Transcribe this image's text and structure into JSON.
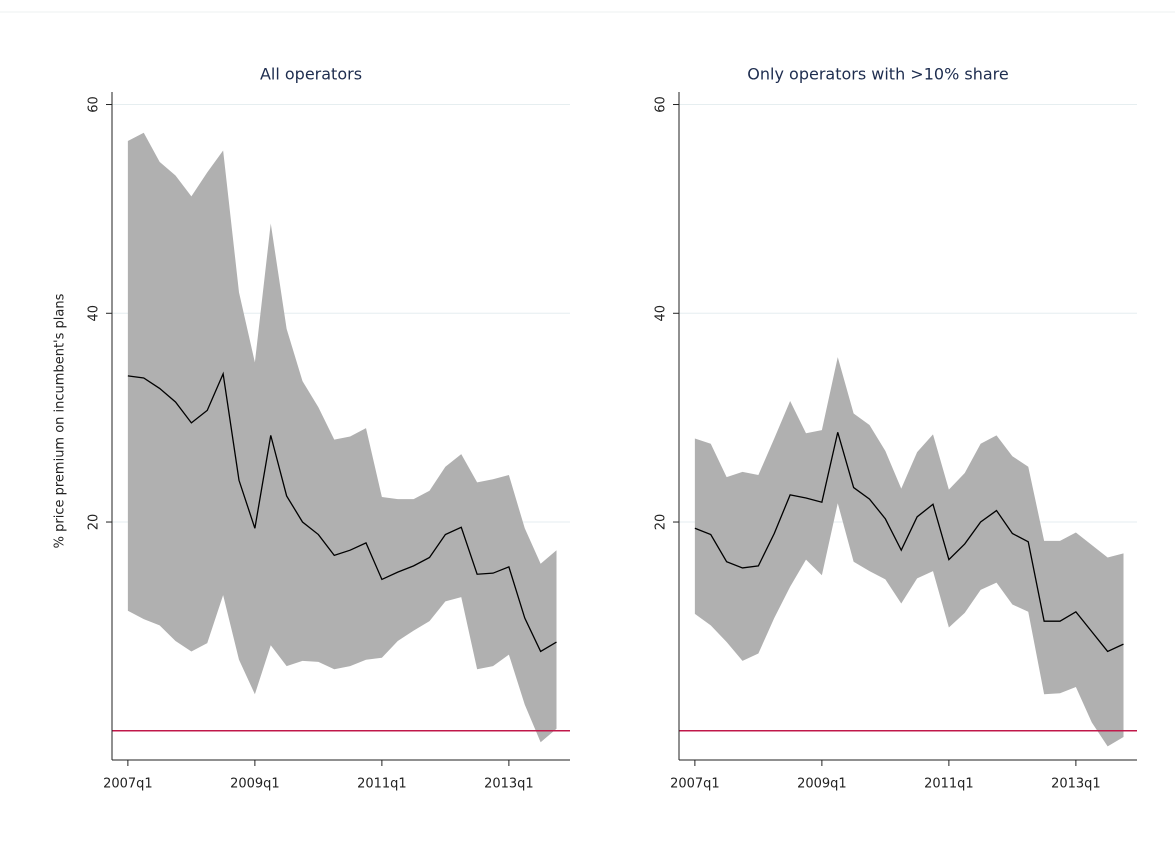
{
  "chart_data": [
    {
      "type": "line",
      "title": "All operators",
      "ylabel": "% price premium on incumbent's plans",
      "x": [
        188,
        189,
        190,
        191,
        192,
        193,
        194,
        195,
        196,
        197,
        198,
        199,
        200,
        201,
        202,
        203,
        204,
        205,
        206,
        207,
        208,
        209,
        210,
        211,
        212,
        213,
        214,
        215
      ],
      "series": [
        {
          "color": "#000000",
          "values": [
            34.0,
            33.8,
            32.8,
            31.5,
            29.5,
            30.7,
            34.2,
            24.0,
            19.4,
            28.3,
            22.5,
            20.0,
            18.8,
            16.8,
            17.3,
            18.0,
            14.5,
            15.2,
            15.8,
            16.6,
            18.8,
            19.5,
            15.0,
            15.1,
            15.7,
            10.8,
            7.6,
            8.5
          ]
        }
      ],
      "band": {
        "color": "#b0b0b0",
        "upper": [
          56.5,
          57.3,
          54.5,
          53.2,
          51.2,
          53.5,
          55.6,
          42.0,
          35.3,
          48.6,
          38.5,
          33.5,
          31.0,
          27.9,
          28.2,
          29.0,
          22.4,
          22.2,
          22.2,
          23.0,
          25.3,
          26.5,
          23.8,
          24.1,
          24.5,
          19.4,
          16.0,
          17.3
        ],
        "lower": [
          11.5,
          10.7,
          10.1,
          8.6,
          7.6,
          8.4,
          13.0,
          6.8,
          3.5,
          8.2,
          6.2,
          6.7,
          6.6,
          5.9,
          6.2,
          6.8,
          7.0,
          8.6,
          9.6,
          10.5,
          12.4,
          12.8,
          5.9,
          6.2,
          7.3,
          2.5,
          -1.1,
          0.2
        ]
      },
      "reference_line": {
        "value": 0,
        "color": "#c0184a"
      },
      "xlim": [
        187,
        215.85
      ],
      "ylim": [
        -2.8,
        61.2
      ],
      "xticks": [
        {
          "value": 188,
          "label": "2007q1"
        },
        {
          "value": 196,
          "label": "2009q1"
        },
        {
          "value": 204,
          "label": "2011q1"
        },
        {
          "value": 212,
          "label": "2013q1"
        }
      ],
      "yticks": [
        20,
        40,
        60
      ],
      "grid": true
    },
    {
      "type": "line",
      "title": "Only operators with >10% share",
      "x": [
        188,
        189,
        190,
        191,
        192,
        193,
        194,
        195,
        196,
        197,
        198,
        199,
        200,
        201,
        202,
        203,
        204,
        205,
        206,
        207,
        208,
        209,
        210,
        211,
        212,
        213,
        214,
        215
      ],
      "series": [
        {
          "color": "#000000",
          "values": [
            19.4,
            18.8,
            16.2,
            15.6,
            15.8,
            18.9,
            22.6,
            22.3,
            21.9,
            28.6,
            23.3,
            22.2,
            20.3,
            17.3,
            20.5,
            21.7,
            16.4,
            17.9,
            20.0,
            21.1,
            18.9,
            18.1,
            10.5,
            10.5,
            11.4,
            9.5,
            7.6,
            8.3
          ]
        }
      ],
      "band": {
        "color": "#b0b0b0",
        "upper": [
          28.0,
          27.5,
          24.3,
          24.8,
          24.5,
          28.0,
          31.6,
          28.5,
          28.8,
          35.8,
          30.4,
          29.3,
          26.8,
          23.2,
          26.7,
          28.4,
          23.1,
          24.7,
          27.5,
          28.3,
          26.3,
          25.3,
          18.2,
          18.2,
          19.0,
          17.8,
          16.6,
          17.0
        ],
        "lower": [
          11.2,
          10.1,
          8.5,
          6.7,
          7.4,
          10.8,
          13.8,
          16.4,
          14.9,
          21.8,
          16.2,
          15.3,
          14.5,
          12.2,
          14.6,
          15.3,
          9.9,
          11.3,
          13.5,
          14.2,
          12.1,
          11.4,
          3.5,
          3.6,
          4.2,
          0.8,
          -1.5,
          -0.6
        ]
      },
      "reference_line": {
        "value": 0,
        "color": "#c0184a"
      },
      "xlim": [
        187,
        215.85
      ],
      "ylim": [
        -2.8,
        61.2
      ],
      "xticks": [
        {
          "value": 188,
          "label": "2007q1"
        },
        {
          "value": 196,
          "label": "2009q1"
        },
        {
          "value": 204,
          "label": "2011q1"
        },
        {
          "value": 212,
          "label": "2013q1"
        }
      ],
      "yticks": [
        20,
        40,
        60
      ],
      "grid": true
    }
  ]
}
